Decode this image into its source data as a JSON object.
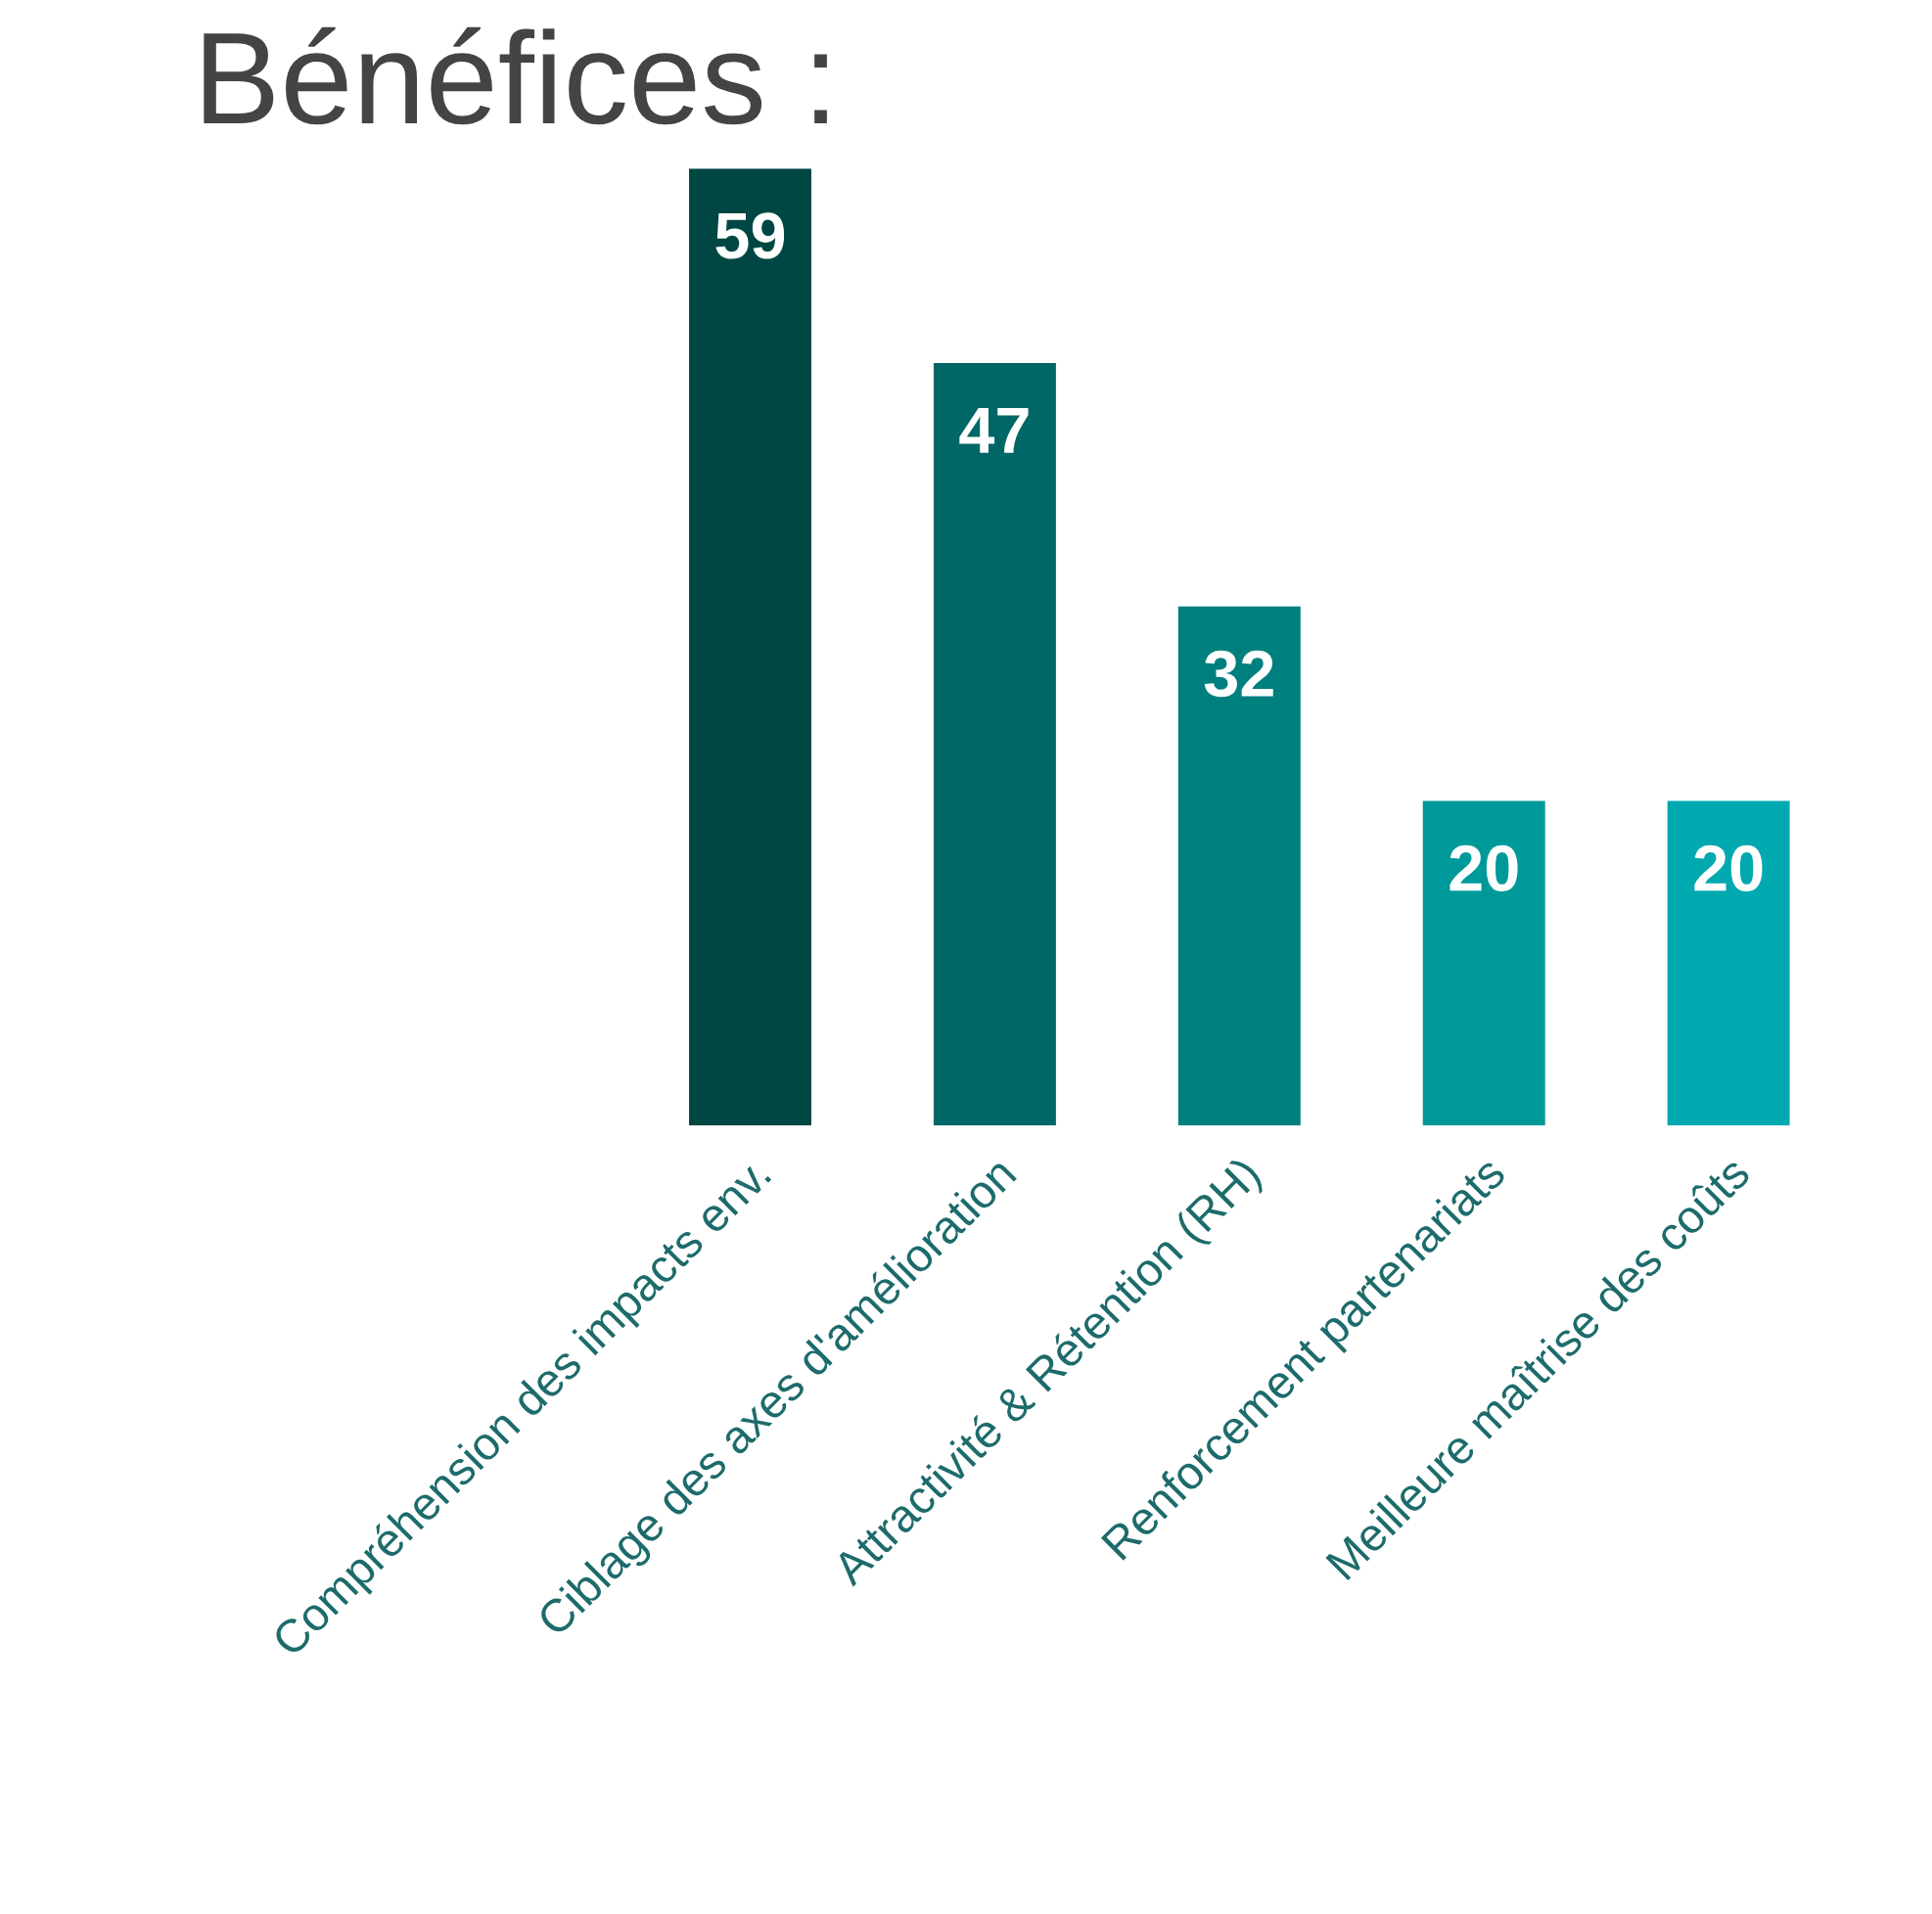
{
  "chart_data": {
    "type": "bar",
    "title": "Bénéfices :",
    "categories": [
      "Compréhension des impacts env.",
      "Ciblage des axes d'amélioration",
      "Attractivité & Rétention (RH)",
      "Renforcement partenariats",
      "Meilleure maîtrise des coûts"
    ],
    "values": [
      59,
      47,
      32,
      20,
      20
    ],
    "colors": [
      "#004744",
      "#006766",
      "#007f7f",
      "#009999",
      "#00a8b0"
    ],
    "data_labels": true,
    "grid": false,
    "legend": false
  }
}
